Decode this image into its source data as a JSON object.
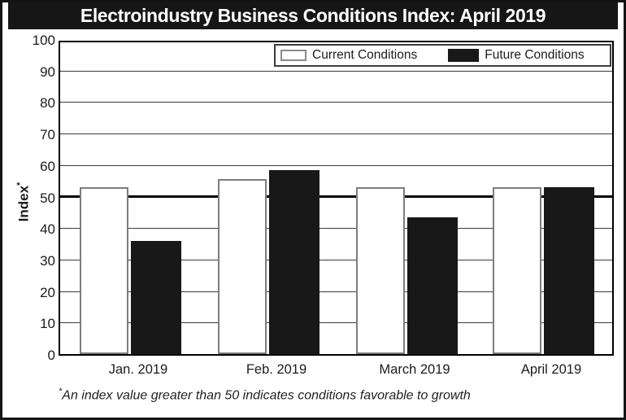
{
  "title": "Electroindustry Business Conditions Index: April 2019",
  "chart_data": {
    "type": "bar",
    "categories": [
      "Jan. 2019",
      "Feb. 2019",
      "March 2019",
      "April 2019"
    ],
    "series": [
      {
        "name": "Current Conditions",
        "values": [
          53,
          55.5,
          53,
          53
        ],
        "fill": "#ffffff",
        "border": "#7d7d7d"
      },
      {
        "name": "Future Conditions",
        "values": [
          36,
          58.5,
          43.5,
          53
        ],
        "fill": "#181818"
      }
    ],
    "ylabel": "Index",
    "ylabel_marker": "*",
    "ylim": [
      0,
      100
    ],
    "yticks": [
      0,
      10,
      20,
      30,
      40,
      50,
      60,
      70,
      80,
      90,
      100
    ],
    "grid": "horizontal",
    "reference_line": {
      "value": 50,
      "style": "bold-black"
    },
    "legend_position": "top-right-inside",
    "footnote_marker": "*",
    "footnote_text": "An index value greater than 50 indicates conditions favorable to growth"
  },
  "colors": {
    "title_bg": "#161616",
    "title_fg": "#ffffff",
    "bar_current_fill": "#ffffff",
    "bar_current_border": "#7d7d7d",
    "bar_future_fill": "#181818",
    "outer_border": "#141414"
  }
}
